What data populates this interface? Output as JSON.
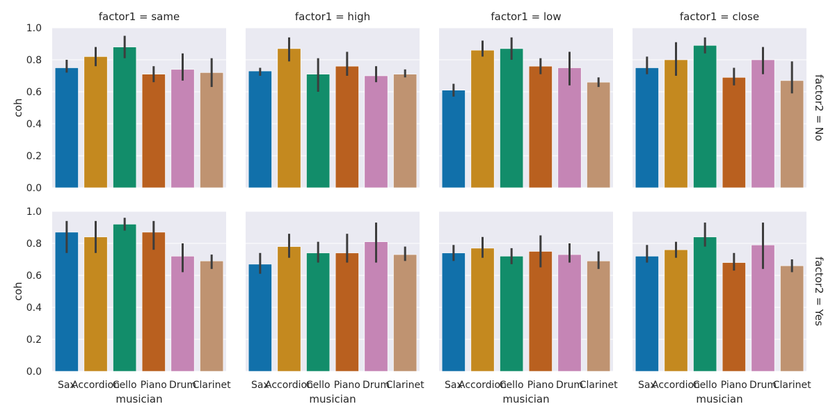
{
  "chart_data": {
    "type": "bar",
    "categories": [
      "Sax",
      "Accordion",
      "Cello",
      "Piano",
      "Drum",
      "Clarinet"
    ],
    "colors": [
      "#1170aa",
      "#c4891f",
      "#128d6a",
      "#b9601f",
      "#c585b5",
      "#bf9371"
    ],
    "xlabel": "musician",
    "ylabel": "coh",
    "ylim": [
      0,
      1.0
    ],
    "yticks": [
      "0.0",
      "0.2",
      "0.4",
      "0.6",
      "0.8",
      "1.0"
    ],
    "grid": true,
    "columns": [
      {
        "label": "factor1 = same"
      },
      {
        "label": "factor1 = high"
      },
      {
        "label": "factor1 = low"
      },
      {
        "label": "factor1 = close"
      }
    ],
    "rows": [
      {
        "label": "factor2 = No"
      },
      {
        "label": "factor2 = Yes"
      }
    ],
    "panels": [
      {
        "row": 0,
        "col": 0,
        "values": [
          0.75,
          0.82,
          0.88,
          0.71,
          0.74,
          0.72
        ],
        "ci": [
          [
            0.72,
            0.8
          ],
          [
            0.76,
            0.88
          ],
          [
            0.81,
            0.95
          ],
          [
            0.66,
            0.76
          ],
          [
            0.67,
            0.84
          ],
          [
            0.63,
            0.81
          ]
        ]
      },
      {
        "row": 0,
        "col": 1,
        "values": [
          0.73,
          0.87,
          0.71,
          0.76,
          0.7,
          0.71
        ],
        "ci": [
          [
            0.7,
            0.75
          ],
          [
            0.79,
            0.94
          ],
          [
            0.6,
            0.81
          ],
          [
            0.7,
            0.85
          ],
          [
            0.66,
            0.76
          ],
          [
            0.69,
            0.74
          ]
        ]
      },
      {
        "row": 0,
        "col": 2,
        "values": [
          0.61,
          0.86,
          0.87,
          0.76,
          0.75,
          0.66
        ],
        "ci": [
          [
            0.57,
            0.65
          ],
          [
            0.82,
            0.92
          ],
          [
            0.8,
            0.94
          ],
          [
            0.71,
            0.81
          ],
          [
            0.64,
            0.85
          ],
          [
            0.63,
            0.69
          ]
        ]
      },
      {
        "row": 0,
        "col": 3,
        "values": [
          0.75,
          0.8,
          0.89,
          0.69,
          0.8,
          0.67
        ],
        "ci": [
          [
            0.71,
            0.82
          ],
          [
            0.7,
            0.91
          ],
          [
            0.84,
            0.94
          ],
          [
            0.64,
            0.75
          ],
          [
            0.71,
            0.88
          ],
          [
            0.59,
            0.79
          ]
        ]
      },
      {
        "row": 1,
        "col": 0,
        "values": [
          0.87,
          0.84,
          0.92,
          0.87,
          0.72,
          0.69
        ],
        "ci": [
          [
            0.74,
            0.94
          ],
          [
            0.74,
            0.94
          ],
          [
            0.88,
            0.96
          ],
          [
            0.76,
            0.94
          ],
          [
            0.62,
            0.8
          ],
          [
            0.64,
            0.73
          ]
        ]
      },
      {
        "row": 1,
        "col": 1,
        "values": [
          0.67,
          0.78,
          0.74,
          0.74,
          0.81,
          0.73
        ],
        "ci": [
          [
            0.61,
            0.74
          ],
          [
            0.71,
            0.86
          ],
          [
            0.68,
            0.81
          ],
          [
            0.68,
            0.86
          ],
          [
            0.68,
            0.93
          ],
          [
            0.69,
            0.78
          ]
        ]
      },
      {
        "row": 1,
        "col": 2,
        "values": [
          0.74,
          0.77,
          0.72,
          0.75,
          0.73,
          0.69
        ],
        "ci": [
          [
            0.69,
            0.79
          ],
          [
            0.71,
            0.84
          ],
          [
            0.67,
            0.77
          ],
          [
            0.65,
            0.85
          ],
          [
            0.68,
            0.8
          ],
          [
            0.64,
            0.75
          ]
        ]
      },
      {
        "row": 1,
        "col": 3,
        "values": [
          0.72,
          0.76,
          0.84,
          0.68,
          0.79,
          0.66
        ],
        "ci": [
          [
            0.68,
            0.79
          ],
          [
            0.71,
            0.81
          ],
          [
            0.78,
            0.93
          ],
          [
            0.63,
            0.74
          ],
          [
            0.64,
            0.93
          ],
          [
            0.62,
            0.7
          ]
        ]
      }
    ]
  }
}
